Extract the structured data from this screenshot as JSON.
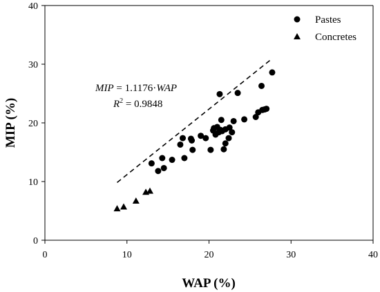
{
  "chart_data": {
    "type": "scatter",
    "xlabel": "WAP (%)",
    "ylabel": "MIP (%)",
    "xlim": [
      0,
      40
    ],
    "ylim": [
      0,
      40
    ],
    "x_ticks": [
      0,
      10,
      20,
      30,
      40
    ],
    "y_ticks": [
      0,
      10,
      20,
      30,
      40
    ],
    "x_tick_labels": [
      "0",
      "10",
      "20",
      "30",
      "40"
    ],
    "y_tick_labels": [
      "0",
      "10",
      "20",
      "30",
      "40"
    ],
    "grid": false,
    "legend_position": "top-right",
    "series": [
      {
        "name": "Pastes",
        "marker": "circle",
        "points": [
          [
            13.0,
            13.1
          ],
          [
            13.8,
            11.8
          ],
          [
            14.3,
            14.0
          ],
          [
            14.5,
            12.3
          ],
          [
            15.5,
            13.7
          ],
          [
            16.5,
            16.3
          ],
          [
            16.8,
            17.4
          ],
          [
            17.0,
            14.0
          ],
          [
            17.8,
            17.3
          ],
          [
            17.9,
            17.0
          ],
          [
            18.0,
            15.4
          ],
          [
            19.0,
            17.8
          ],
          [
            19.6,
            17.4
          ],
          [
            20.2,
            15.4
          ],
          [
            20.5,
            18.7
          ],
          [
            20.6,
            19.1
          ],
          [
            20.8,
            18.0
          ],
          [
            21.0,
            19.3
          ],
          [
            21.2,
            18.4
          ],
          [
            21.3,
            24.9
          ],
          [
            21.4,
            18.8
          ],
          [
            21.5,
            20.5
          ],
          [
            21.6,
            18.6
          ],
          [
            21.8,
            15.5
          ],
          [
            22.0,
            16.5
          ],
          [
            22.0,
            18.9
          ],
          [
            22.4,
            17.4
          ],
          [
            22.5,
            19.2
          ],
          [
            22.8,
            18.4
          ],
          [
            23.0,
            20.3
          ],
          [
            23.5,
            25.1
          ],
          [
            24.3,
            20.6
          ],
          [
            25.7,
            21.0
          ],
          [
            26.0,
            21.8
          ],
          [
            26.4,
            26.3
          ],
          [
            26.5,
            22.2
          ],
          [
            26.8,
            22.3
          ],
          [
            27.0,
            22.4
          ],
          [
            27.7,
            28.6
          ]
        ]
      },
      {
        "name": "Concretes",
        "marker": "triangle",
        "points": [
          [
            8.8,
            5.4
          ],
          [
            9.6,
            5.7
          ],
          [
            11.1,
            6.7
          ],
          [
            12.3,
            8.2
          ],
          [
            12.8,
            8.4
          ]
        ]
      }
    ],
    "trendline": {
      "slope": 1.1176,
      "intercept": 0,
      "x_range": [
        8.8,
        27.7
      ],
      "style": "dashed"
    },
    "annotations": [
      {
        "text_italic": "MIP",
        "text": " = 1.1176·",
        "text_italic2": "WAP"
      },
      {
        "text_italic": "R",
        "sup": "2",
        "text": " = 0.9848"
      }
    ]
  },
  "colors": {
    "marker": "#000000",
    "axis": "#000000",
    "background": "#ffffff"
  }
}
